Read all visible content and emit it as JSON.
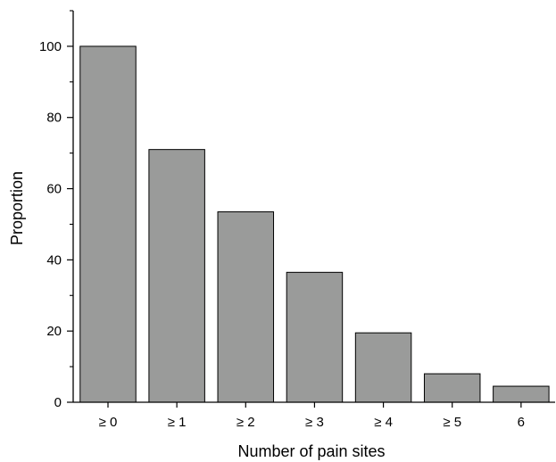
{
  "chart_data": {
    "type": "bar",
    "title": "",
    "xlabel": "Number of pain sites",
    "ylabel": "Proportion",
    "categories": [
      "≥ 0",
      "≥ 1",
      "≥ 2",
      "≥ 3",
      "≥ 4",
      "≥ 5",
      "6"
    ],
    "values": [
      100,
      71,
      53.5,
      36.5,
      19.5,
      8,
      4.5
    ],
    "ylim": [
      0,
      110
    ],
    "yticks": [
      0,
      20,
      40,
      60,
      80,
      100
    ],
    "grid": false,
    "legend": "none",
    "bar_color": "#9a9b9a",
    "bar_edge_color": "#000000"
  }
}
